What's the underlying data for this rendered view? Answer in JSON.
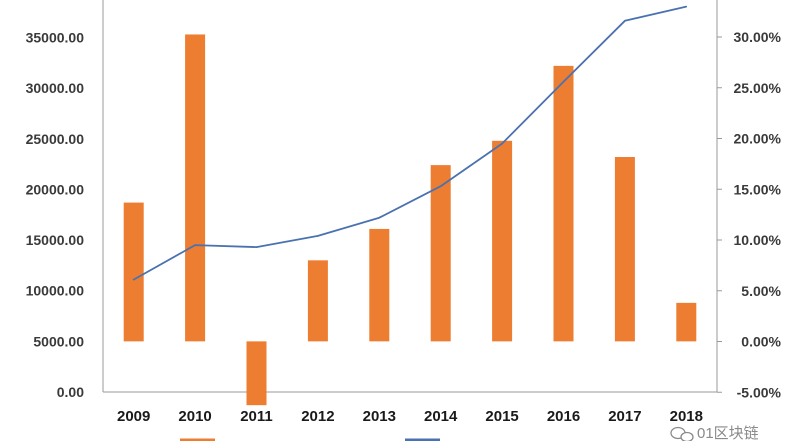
{
  "chart_data": {
    "type": "bar",
    "categories": [
      "2009",
      "2010",
      "2011",
      "2012",
      "2013",
      "2014",
      "2015",
      "2016",
      "2017",
      "2018"
    ],
    "series": [
      {
        "type": "bar",
        "axis": "left",
        "color": "#ED7D31",
        "values": [
          18700,
          35300,
          -1300,
          13000,
          16100,
          22400,
          24800,
          32200,
          23200,
          8800
        ]
      },
      {
        "type": "line",
        "axis": "right",
        "color": "#4A72B0",
        "values": [
          6.1,
          9.5,
          9.3,
          10.4,
          12.2,
          15.3,
          19.5,
          25.6,
          31.6,
          33.0
        ]
      }
    ],
    "y_left": {
      "range": [
        0,
        38000
      ],
      "bar_baseline": 5000,
      "ticks": [
        0,
        5000,
        10000,
        15000,
        20000,
        25000,
        30000,
        35000
      ],
      "tick_labels": [
        "0.00",
        "5000.00",
        "10000.00",
        "15000.00",
        "20000.00",
        "25000.00",
        "30000.00",
        "35000.00"
      ]
    },
    "y_right": {
      "range": [
        -5,
        33.3
      ],
      "ticks": [
        -5,
        0,
        5,
        10,
        15,
        20,
        25,
        30
      ],
      "tick_labels": [
        "-5.00%",
        "0.00%",
        "5.00%",
        "10.00%",
        "15.00%",
        "20.00%",
        "25.00%",
        "30.00%"
      ]
    },
    "grid": false,
    "legend": "bottom",
    "colors": {
      "bar": "#ED7D31",
      "line": "#4A72B0",
      "axis": "#9a9a9a"
    }
  },
  "watermark": {
    "text": "01区块链",
    "icon": "wechat-icon"
  }
}
